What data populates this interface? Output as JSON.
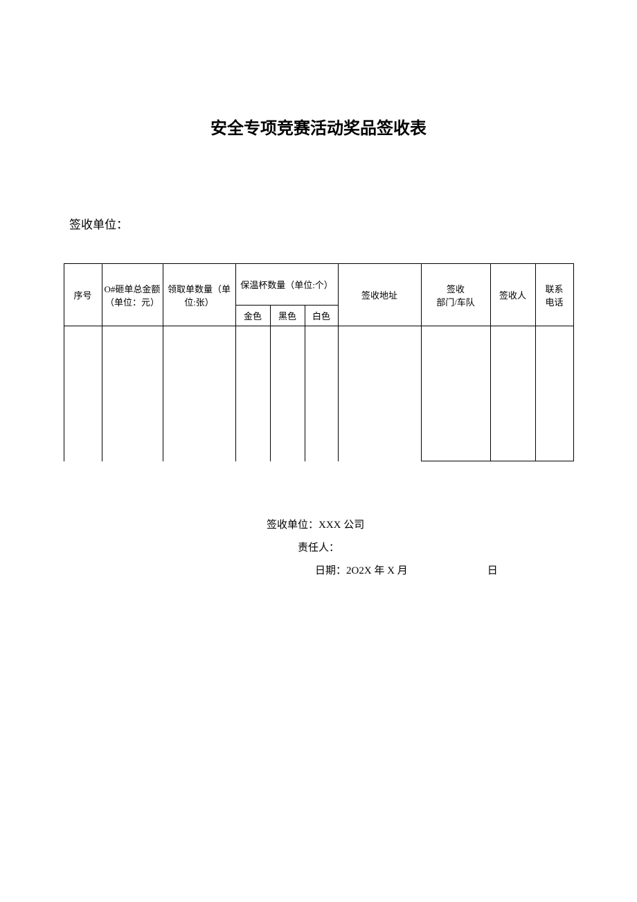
{
  "title": "安全专项竞赛活动奖品签收表",
  "unit_label": "签收单位：",
  "table": {
    "columns": {
      "col1": "序号",
      "col2_line1": "O#砸单总金额",
      "col2_line2": "（单位：",
      "col2_unit": "元",
      "col2_close": "）",
      "col3_line1": "领取单数量（单",
      "col3_line2": "位:张）",
      "col4_header": "保温杯数量（单位:个）",
      "col4_sub1": "金色",
      "col4_sub2": "黑色",
      "col4_sub3": "白色",
      "col5": "签收地址",
      "col6_line1": "签收",
      "col6_line2": "部门/车队",
      "col7": "签收人",
      "col8_line1": "联系",
      "col8_line2": "电话"
    },
    "widths": {
      "c1": 55,
      "c2": 88,
      "c3": 105,
      "c4a": 50,
      "c4b": 50,
      "c4c": 48,
      "c5": 120,
      "c6": 100,
      "c7": 65,
      "c8": 55
    }
  },
  "footer": {
    "line1_label": "签收单位：",
    "line1_value": "XXX 公司",
    "line2_label": "责任人：",
    "line3_label": "日期：",
    "line3_value": "2O2X 年 X 月",
    "line3_day": "日"
  },
  "colors": {
    "border": "#000000",
    "bg": "#ffffff",
    "text": "#000000"
  }
}
